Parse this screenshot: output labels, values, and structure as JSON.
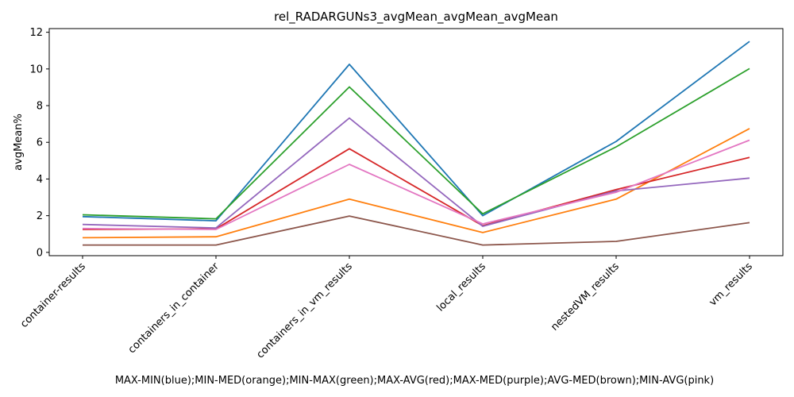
{
  "chart_data": {
    "type": "line",
    "title": "rel_RADARGUNs3_avgMean_avgMean_avgMean",
    "xlabel": "MAX-MIN(blue);MIN-MED(orange);MIN-MAX(green);MAX-AVG(red);MAX-MED(purple);AVG-MED(brown);MIN-AVG(pink)",
    "ylabel": "avgMean%",
    "ylim": [
      -0.18,
      12.2
    ],
    "yticks": [
      0,
      2,
      4,
      6,
      8,
      10,
      12
    ],
    "grid": false,
    "categories": [
      "container-results",
      "containers_in_container",
      "containers_in_vm_results",
      "local_results",
      "nestedVM_results",
      "vm_results"
    ],
    "series": [
      {
        "color": "#1f77b4",
        "values": [
          1.95,
          1.72,
          10.25,
          2.0,
          6.05,
          11.5
        ]
      },
      {
        "color": "#ff7f0e",
        "values": [
          0.8,
          0.85,
          2.9,
          1.08,
          2.9,
          6.75
        ]
      },
      {
        "color": "#2ca02c",
        "values": [
          2.05,
          1.83,
          9.02,
          2.1,
          5.75,
          10.02
        ]
      },
      {
        "color": "#d62728",
        "values": [
          1.25,
          1.28,
          5.65,
          1.45,
          3.42,
          5.18
        ]
      },
      {
        "color": "#9467bd",
        "values": [
          1.52,
          1.33,
          7.32,
          1.42,
          3.35,
          4.05
        ]
      },
      {
        "color": "#8c564b",
        "values": [
          0.4,
          0.4,
          1.98,
          0.4,
          0.6,
          1.62
        ]
      },
      {
        "color": "#e377c2",
        "values": [
          1.3,
          1.25,
          4.8,
          1.55,
          3.28,
          6.12
        ]
      }
    ]
  }
}
